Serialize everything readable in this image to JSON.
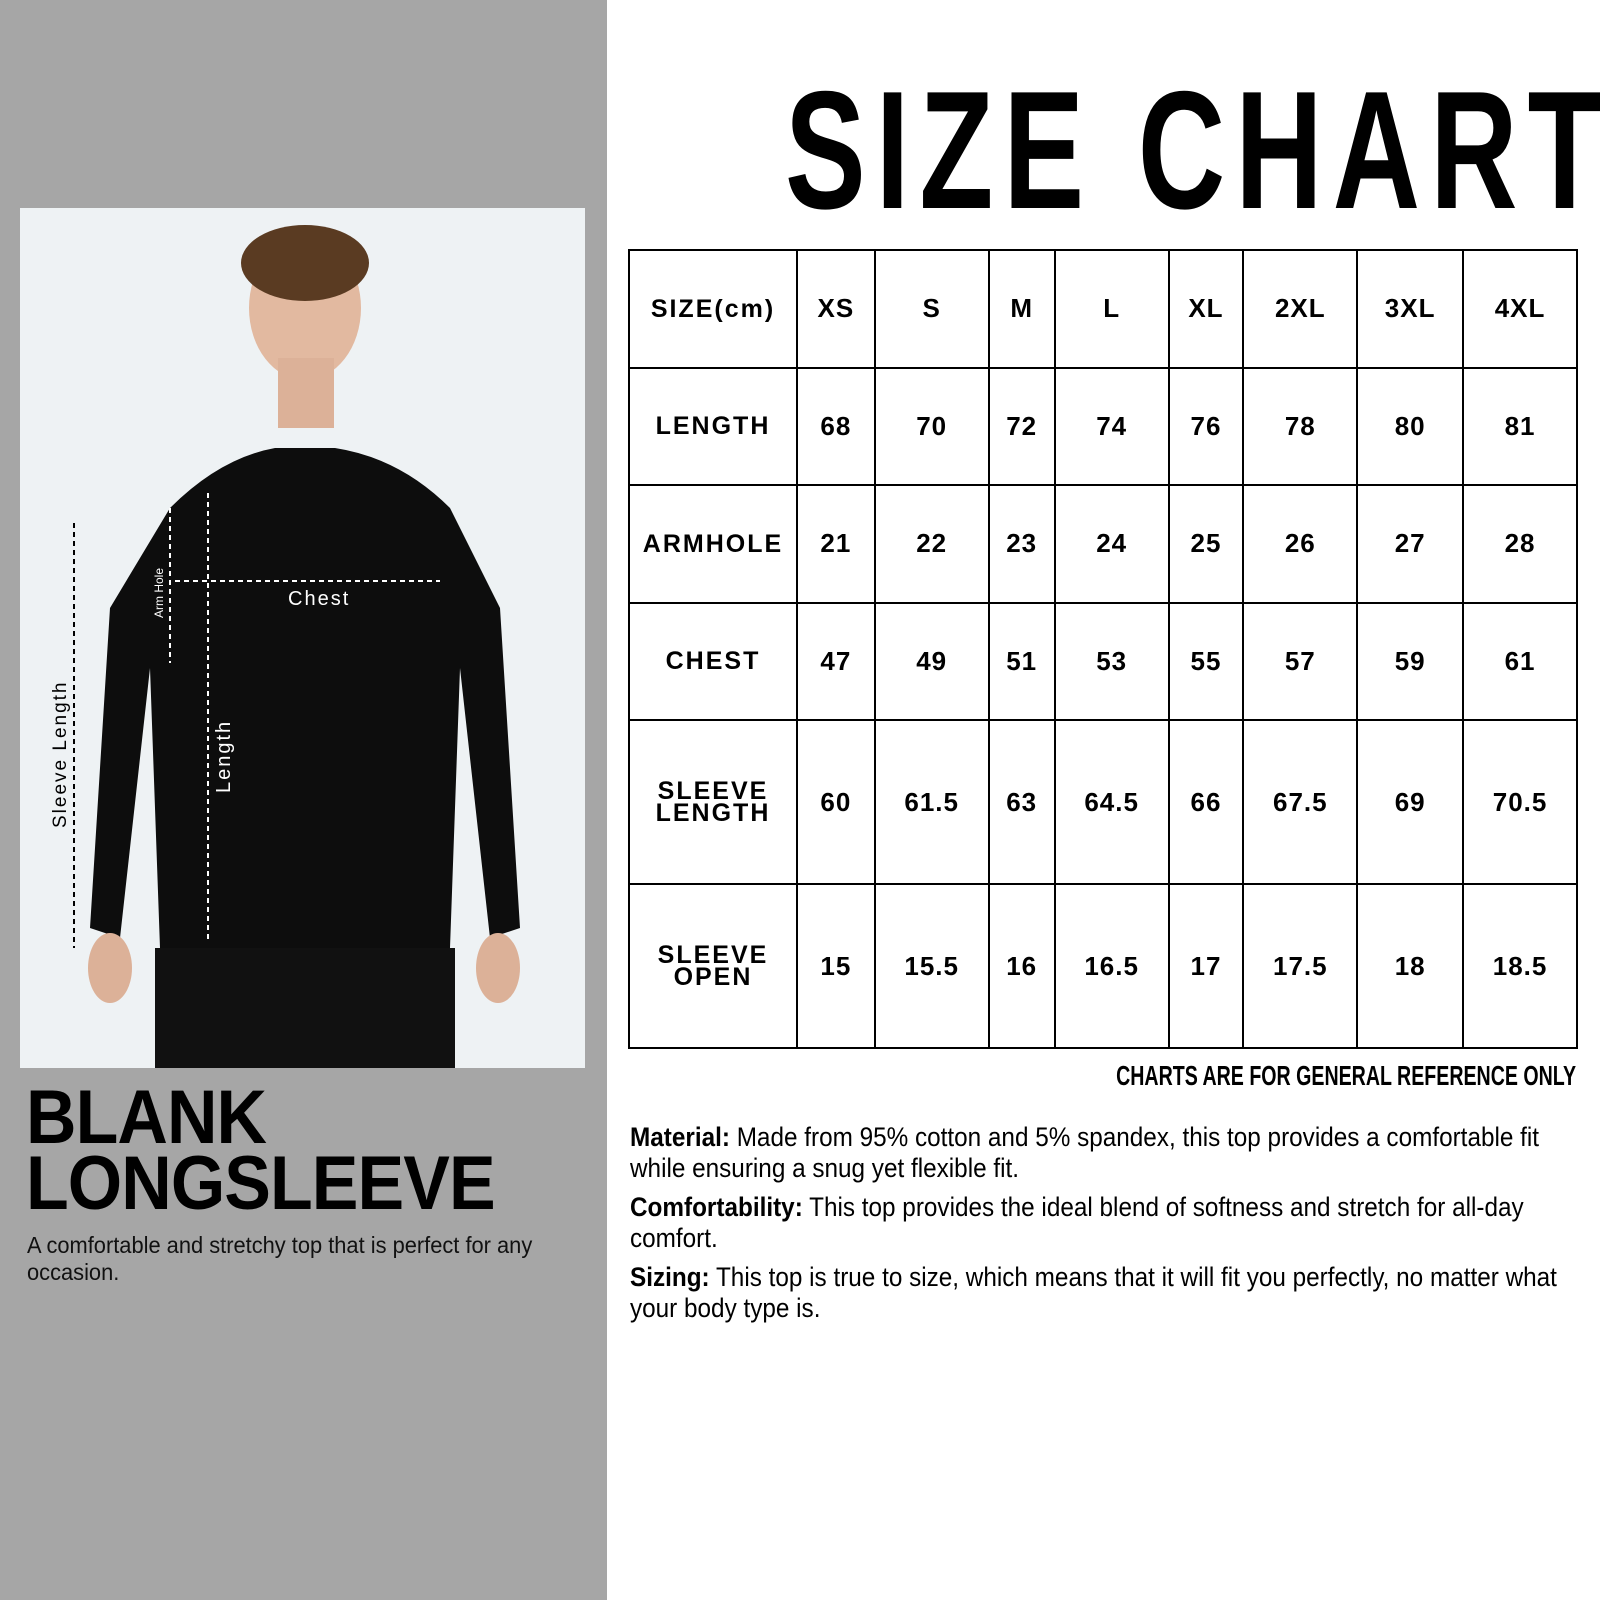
{
  "title": "SIZE CHART",
  "product": {
    "title_line1": "BLANK",
    "title_line2": "LONGSLEEVE",
    "description": "A comfortable and stretchy top that is perfect for any occasion."
  },
  "photo_labels": {
    "chest": "Chest",
    "arm_hole": "Arm Hole",
    "length": "Length",
    "sleeve_length": "Sleeve Length"
  },
  "table": {
    "header": [
      "SIZE(cm)",
      "XS",
      "S",
      "M",
      "L",
      "XL",
      "2XL",
      "3XL",
      "4XL"
    ],
    "rows": [
      {
        "label": "LENGTH",
        "values": [
          "68",
          "70",
          "72",
          "74",
          "76",
          "78",
          "80",
          "81"
        ]
      },
      {
        "label": "ARMHOLE",
        "values": [
          "21",
          "22",
          "23",
          "24",
          "25",
          "26",
          "27",
          "28"
        ]
      },
      {
        "label": "CHEST",
        "values": [
          "47",
          "49",
          "51",
          "53",
          "55",
          "57",
          "59",
          "61"
        ]
      },
      {
        "label": "SLEEVE LENGTH",
        "values": [
          "60",
          "61.5",
          "63",
          "64.5",
          "66",
          "67.5",
          "69",
          "70.5"
        ]
      },
      {
        "label": "SLEEVE OPEN",
        "values": [
          "15",
          "15.5",
          "16",
          "16.5",
          "17",
          "17.5",
          "18",
          "18.5"
        ]
      }
    ]
  },
  "note": "CHARTS ARE FOR GENERAL REFERENCE ONLY",
  "details": [
    {
      "label": "Material:",
      "text": " Made from 95% cotton and 5%  spandex, this top provides a comfortable fit while ensuring a snug yet flexible fit."
    },
    {
      "label": "Comfortability:",
      "text": " This top provides the ideal blend of softness and stretch for all-day comfort."
    },
    {
      "label": "Sizing:",
      "text": " This top is true to size, which means that it will fit you perfectly, no matter what your body type is."
    }
  ]
}
